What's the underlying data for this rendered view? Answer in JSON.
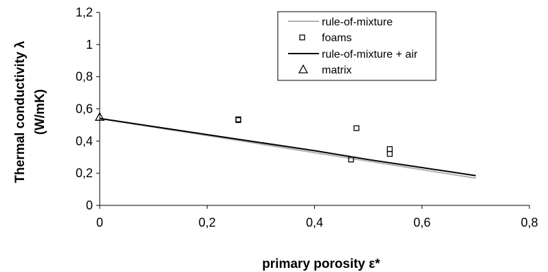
{
  "chart_data": {
    "type": "scatter",
    "xlabel": "primary porosity ε*",
    "ylabel": "Thermal conductivity λ (W/mK)",
    "ylabel_lines": [
      "Thermal conductivity λ",
      "(W/mK)"
    ],
    "xlim": [
      0,
      0.8
    ],
    "ylim": [
      0,
      1.2
    ],
    "xticks": [
      0,
      0.2,
      0.4,
      0.6,
      0.8
    ],
    "xtick_labels": [
      "0",
      "0,2",
      "0,4",
      "0,6",
      "0,8"
    ],
    "yticks": [
      0,
      0.2,
      0.4,
      0.6,
      0.8,
      1.0,
      1.2
    ],
    "ytick_labels": [
      "0",
      "0,2",
      "0,4",
      "0,6",
      "0,8",
      "1",
      "1,2"
    ],
    "grid": false,
    "legend_position": "top-right",
    "series": [
      {
        "name": "rule-of-mixture",
        "kind": "line",
        "color": "#b0b0b0",
        "x": [
          0,
          0.1,
          0.2,
          0.3,
          0.4,
          0.5,
          0.6,
          0.7
        ],
        "y": [
          0.54,
          0.487,
          0.434,
          0.381,
          0.328,
          0.275,
          0.222,
          0.169
        ]
      },
      {
        "name": "foams",
        "kind": "marker",
        "marker": "square",
        "color": "#000000",
        "x": [
          0.258,
          0.258,
          0.478,
          0.468,
          0.54,
          0.54
        ],
        "y": [
          0.535,
          0.53,
          0.48,
          0.285,
          0.35,
          0.32
        ]
      },
      {
        "name": "rule-of-mixture + air",
        "kind": "line",
        "color": "#000000",
        "x": [
          0,
          0.1,
          0.2,
          0.3,
          0.4,
          0.5,
          0.6,
          0.7
        ],
        "y": [
          0.54,
          0.49,
          0.44,
          0.39,
          0.34,
          0.285,
          0.235,
          0.185
        ]
      },
      {
        "name": "matrix",
        "kind": "marker",
        "marker": "triangle",
        "color": "#000000",
        "x": [
          0
        ],
        "y": [
          0.55
        ]
      }
    ]
  }
}
